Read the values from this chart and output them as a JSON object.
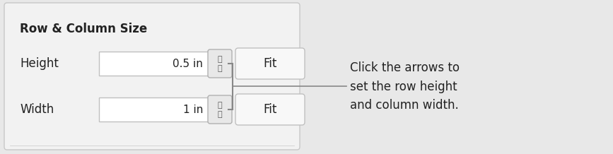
{
  "fig_width": 8.67,
  "fig_height": 2.18,
  "dpi": 100,
  "bg_color": "#e8e8e8",
  "panel_bg": "#f2f2f2",
  "panel_border_color": "#c8c8c8",
  "title": "Row & Column Size",
  "title_fontsize": 12,
  "title_fontweight": "bold",
  "label_height": "Height",
  "label_width": "Width",
  "label_fontsize": 12,
  "input_box_color": "#ffffff",
  "input_box_border": "#c0c0c0",
  "input_height_val": "0.5 in",
  "input_width_val": "1 in",
  "input_fontsize": 11,
  "spinner_bg": "#e8e8e8",
  "spinner_border": "#b0b0b0",
  "fit_btn_color": "#f8f8f8",
  "fit_btn_border": "#c0c0c0",
  "fit_label": "Fit",
  "fit_fontsize": 12,
  "annotation_text": "Click the arrows to\nset the row height\nand column width.",
  "annotation_fontsize": 12,
  "bracket_color": "#888888",
  "text_color": "#222222"
}
